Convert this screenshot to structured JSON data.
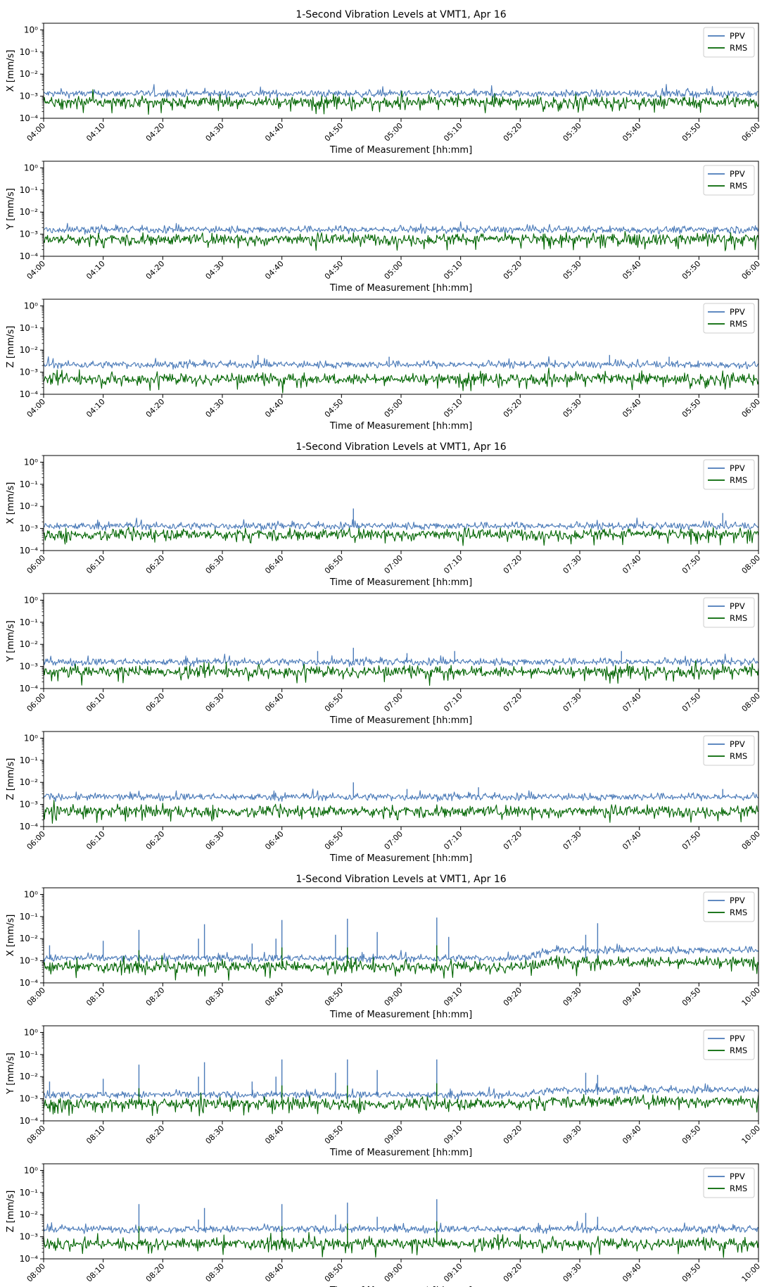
{
  "figure": {
    "series_colors": {
      "PPV": "#4a7ab8",
      "RMS": "#006400"
    }
  },
  "chart_data": [
    {
      "type": "line",
      "title": "1-Second Vibration Levels at VMT1, Apr 16",
      "ylabel": "X [mm/s]",
      "xlabel": "Time of Measurement [hh:mm]",
      "yscale": "log",
      "ylim": [
        0.0001,
        2
      ],
      "yticks": [
        "10⁰",
        "10⁻¹",
        "10⁻²",
        "10⁻³",
        "10⁻⁴"
      ],
      "xlim": [
        "04:00",
        "06:00"
      ],
      "xticks": [
        "04:00",
        "04:10",
        "04:20",
        "04:30",
        "04:40",
        "04:50",
        "05:00",
        "05:10",
        "05:20",
        "05:30",
        "05:40",
        "05:50",
        "06:00"
      ],
      "legend": "top-right",
      "series": [
        {
          "name": "PPV",
          "typical": 0.0013,
          "spikes": []
        },
        {
          "name": "RMS",
          "typical": 0.00055,
          "spikes": []
        }
      ]
    },
    {
      "type": "line",
      "title": "",
      "ylabel": "Y [mm/s]",
      "xlabel": "Time of Measurement [hh:mm]",
      "yscale": "log",
      "ylim": [
        0.0001,
        2
      ],
      "yticks": [
        "10⁰",
        "10⁻¹",
        "10⁻²",
        "10⁻³",
        "10⁻⁴"
      ],
      "xlim": [
        "04:00",
        "06:00"
      ],
      "xticks": [
        "04:00",
        "04:10",
        "04:20",
        "04:30",
        "04:40",
        "04:50",
        "05:00",
        "05:10",
        "05:20",
        "05:30",
        "05:40",
        "05:50",
        "06:00"
      ],
      "legend": "top-right",
      "series": [
        {
          "name": "PPV",
          "typical": 0.0016,
          "spikes": []
        },
        {
          "name": "RMS",
          "typical": 0.0006,
          "spikes": []
        }
      ]
    },
    {
      "type": "line",
      "title": "",
      "ylabel": "Z [mm/s]",
      "xlabel": "Time of Measurement [hh:mm]",
      "yscale": "log",
      "ylim": [
        0.0001,
        2
      ],
      "yticks": [
        "10⁰",
        "10⁻¹",
        "10⁻²",
        "10⁻³",
        "10⁻⁴"
      ],
      "xlim": [
        "04:00",
        "06:00"
      ],
      "xticks": [
        "04:00",
        "04:10",
        "04:20",
        "04:30",
        "04:40",
        "04:50",
        "05:00",
        "05:10",
        "05:20",
        "05:30",
        "05:40",
        "05:50",
        "06:00"
      ],
      "legend": "top-right",
      "series": [
        {
          "name": "PPV",
          "typical": 0.0022,
          "spikes": [
            [
              "04:36",
              0.006
            ],
            [
              "04:58",
              0.005
            ],
            [
              "05:35",
              0.006
            ],
            [
              "05:45",
              0.005
            ]
          ]
        },
        {
          "name": "RMS",
          "typical": 0.0005,
          "spikes": []
        }
      ]
    },
    {
      "type": "line",
      "title": "1-Second Vibration Levels at VMT1, Apr 16",
      "ylabel": "X [mm/s]",
      "xlabel": "Time of Measurement [hh:mm]",
      "yscale": "log",
      "ylim": [
        0.0001,
        2
      ],
      "yticks": [
        "10⁰",
        "10⁻¹",
        "10⁻²",
        "10⁻³",
        "10⁻⁴"
      ],
      "xlim": [
        "06:00",
        "08:00"
      ],
      "xticks": [
        "06:00",
        "06:10",
        "06:20",
        "06:30",
        "06:40",
        "06:50",
        "07:00",
        "07:10",
        "07:20",
        "07:30",
        "07:40",
        "07:50",
        "08:00"
      ],
      "legend": "top-right",
      "series": [
        {
          "name": "PPV",
          "typical": 0.0013,
          "spikes": [
            [
              "06:52",
              0.008
            ],
            [
              "07:54",
              0.005
            ]
          ]
        },
        {
          "name": "RMS",
          "typical": 0.00055,
          "spikes": []
        }
      ]
    },
    {
      "type": "line",
      "title": "",
      "ylabel": "Y [mm/s]",
      "xlabel": "Time of Measurement [hh:mm]",
      "yscale": "log",
      "ylim": [
        0.0001,
        2
      ],
      "yticks": [
        "10⁰",
        "10⁻¹",
        "10⁻²",
        "10⁻³",
        "10⁻⁴"
      ],
      "xlim": [
        "06:00",
        "08:00"
      ],
      "xticks": [
        "06:00",
        "06:10",
        "06:20",
        "06:30",
        "06:40",
        "06:50",
        "07:00",
        "07:10",
        "07:20",
        "07:30",
        "07:40",
        "07:50",
        "08:00"
      ],
      "legend": "top-right",
      "series": [
        {
          "name": "PPV",
          "typical": 0.0016,
          "spikes": [
            [
              "06:46",
              0.005
            ],
            [
              "06:52",
              0.007
            ],
            [
              "07:01",
              0.004
            ],
            [
              "07:09",
              0.005
            ],
            [
              "07:37",
              0.005
            ]
          ]
        },
        {
          "name": "RMS",
          "typical": 0.0006,
          "spikes": []
        }
      ]
    },
    {
      "type": "line",
      "title": "",
      "ylabel": "Z [mm/s]",
      "xlabel": "Time of Measurement [hh:mm]",
      "yscale": "log",
      "ylim": [
        0.0001,
        2
      ],
      "yticks": [
        "10⁰",
        "10⁻¹",
        "10⁻²",
        "10⁻³",
        "10⁻⁴"
      ],
      "xlim": [
        "06:00",
        "08:00"
      ],
      "xticks": [
        "06:00",
        "06:10",
        "06:20",
        "06:30",
        "06:40",
        "06:50",
        "07:00",
        "07:10",
        "07:20",
        "07:30",
        "07:40",
        "07:50",
        "08:00"
      ],
      "legend": "top-right",
      "series": [
        {
          "name": "PPV",
          "typical": 0.0022,
          "spikes": [
            [
              "06:52",
              0.01
            ],
            [
              "07:01",
              0.005
            ],
            [
              "07:13",
              0.006
            ],
            [
              "07:54",
              0.005
            ]
          ]
        },
        {
          "name": "RMS",
          "typical": 0.0005,
          "spikes": []
        }
      ]
    },
    {
      "type": "line",
      "title": "1-Second Vibration Levels at VMT1, Apr 16",
      "ylabel": "X [mm/s]",
      "xlabel": "Time of Measurement [hh:mm]",
      "yscale": "log",
      "ylim": [
        0.0001,
        2
      ],
      "yticks": [
        "10⁰",
        "10⁻¹",
        "10⁻²",
        "10⁻³",
        "10⁻⁴"
      ],
      "xlim": [
        "08:00",
        "10:00"
      ],
      "xticks": [
        "08:00",
        "08:10",
        "08:20",
        "08:30",
        "08:40",
        "08:50",
        "09:00",
        "09:10",
        "09:20",
        "09:30",
        "09:40",
        "09:50",
        "10:00"
      ],
      "legend": "top-right",
      "series": [
        {
          "name": "PPV",
          "typical": 0.0013,
          "elevated_from": "09:20",
          "elevated": 0.003,
          "spikes": [
            [
              "08:01",
              0.005
            ],
            [
              "08:10",
              0.008
            ],
            [
              "08:16",
              0.025
            ],
            [
              "08:26",
              0.01
            ],
            [
              "08:27",
              0.045
            ],
            [
              "08:35",
              0.006
            ],
            [
              "08:39",
              0.01
            ],
            [
              "08:40",
              0.07
            ],
            [
              "08:49",
              0.015
            ],
            [
              "08:51",
              0.08
            ],
            [
              "08:56",
              0.02
            ],
            [
              "09:06",
              0.09
            ],
            [
              "09:08",
              0.012
            ],
            [
              "09:31",
              0.015
            ],
            [
              "09:33",
              0.05
            ]
          ]
        },
        {
          "name": "RMS",
          "typical": 0.00055,
          "elevated_from": "09:20",
          "elevated": 0.0009,
          "spikes": [
            [
              "08:16",
              0.003
            ],
            [
              "08:40",
              0.004
            ],
            [
              "08:51",
              0.004
            ],
            [
              "09:06",
              0.005
            ]
          ]
        }
      ]
    },
    {
      "type": "line",
      "title": "",
      "ylabel": "Y [mm/s]",
      "xlabel": "Time of Measurement [hh:mm]",
      "yscale": "log",
      "ylim": [
        0.0001,
        2
      ],
      "yticks": [
        "10⁰",
        "10⁻¹",
        "10⁻²",
        "10⁻³",
        "10⁻⁴"
      ],
      "xlim": [
        "08:00",
        "10:00"
      ],
      "xticks": [
        "08:00",
        "08:10",
        "08:20",
        "08:30",
        "08:40",
        "08:50",
        "09:00",
        "09:10",
        "09:20",
        "09:30",
        "09:40",
        "09:50",
        "10:00"
      ],
      "legend": "top-right",
      "series": [
        {
          "name": "PPV",
          "typical": 0.0015,
          "elevated_from": "09:20",
          "elevated": 0.0025,
          "spikes": [
            [
              "08:01",
              0.006
            ],
            [
              "08:10",
              0.008
            ],
            [
              "08:16",
              0.035
            ],
            [
              "08:26",
              0.01
            ],
            [
              "08:27",
              0.045
            ],
            [
              "08:35",
              0.006
            ],
            [
              "08:39",
              0.01
            ],
            [
              "08:40",
              0.06
            ],
            [
              "08:49",
              0.015
            ],
            [
              "08:51",
              0.06
            ],
            [
              "08:56",
              0.02
            ],
            [
              "09:06",
              0.06
            ],
            [
              "09:31",
              0.015
            ],
            [
              "09:33",
              0.012
            ]
          ]
        },
        {
          "name": "RMS",
          "typical": 0.0006,
          "elevated_from": "09:20",
          "elevated": 0.0008,
          "spikes": [
            [
              "08:16",
              0.003
            ],
            [
              "08:40",
              0.004
            ],
            [
              "08:51",
              0.004
            ],
            [
              "09:06",
              0.005
            ]
          ]
        }
      ]
    },
    {
      "type": "line",
      "title": "",
      "ylabel": "Z [mm/s]",
      "xlabel": "Time of Measurement [hh:mm]",
      "yscale": "log",
      "ylim": [
        0.0001,
        2
      ],
      "yticks": [
        "10⁰",
        "10⁻¹",
        "10⁻²",
        "10⁻³",
        "10⁻⁴"
      ],
      "xlim": [
        "08:00",
        "10:00"
      ],
      "xticks": [
        "08:00",
        "08:10",
        "08:20",
        "08:30",
        "08:40",
        "08:50",
        "09:00",
        "09:10",
        "09:20",
        "09:30",
        "09:40",
        "09:50",
        "10:00"
      ],
      "legend": "top-right",
      "series": [
        {
          "name": "PPV",
          "typical": 0.0022,
          "spikes": [
            [
              "08:16",
              0.03
            ],
            [
              "08:26",
              0.006
            ],
            [
              "08:27",
              0.02
            ],
            [
              "08:40",
              0.03
            ],
            [
              "08:49",
              0.01
            ],
            [
              "08:51",
              0.035
            ],
            [
              "08:56",
              0.008
            ],
            [
              "09:06",
              0.05
            ],
            [
              "09:31",
              0.012
            ],
            [
              "09:33",
              0.008
            ]
          ]
        },
        {
          "name": "RMS",
          "typical": 0.0005,
          "spikes": [
            [
              "08:16",
              0.003
            ],
            [
              "08:40",
              0.003
            ],
            [
              "08:51",
              0.004
            ],
            [
              "09:06",
              0.005
            ]
          ]
        }
      ]
    }
  ]
}
